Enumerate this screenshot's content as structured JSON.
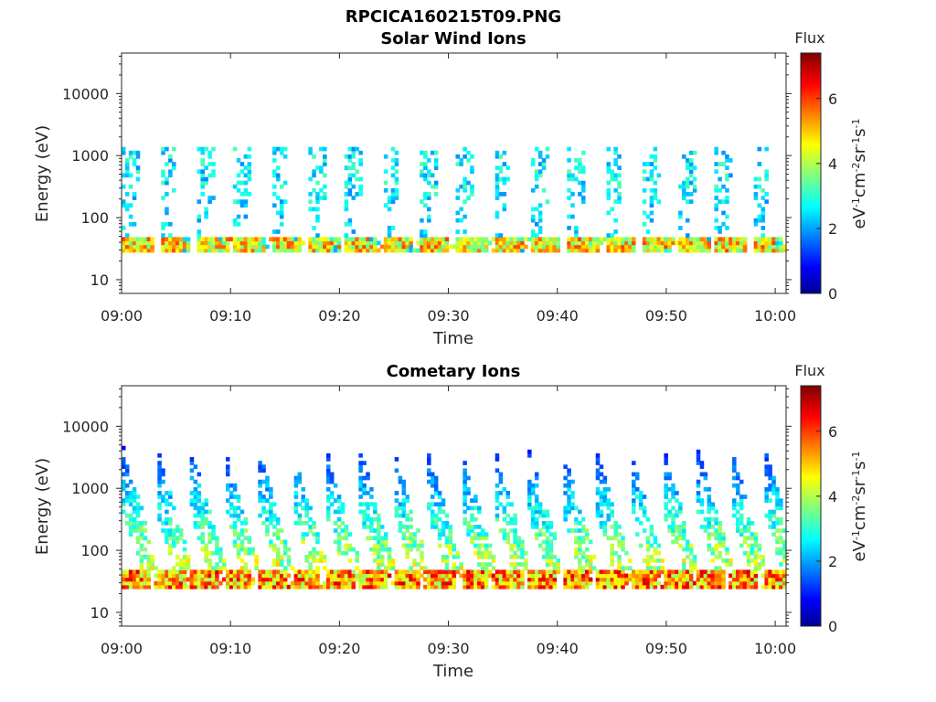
{
  "figure": {
    "title": "RPCICA160215T09.PNG"
  },
  "chart_data": [
    {
      "type": "heatmap",
      "title": "Solar Wind Ions",
      "xlabel": "Time",
      "ylabel": "Energy (eV)",
      "y_scale": "log",
      "ylim": [
        6,
        45000
      ],
      "xlim": [
        "09:00",
        "10:01"
      ],
      "x_ticks": [
        "09:00",
        "09:10",
        "09:20",
        "09:30",
        "09:40",
        "09:50",
        "10:00"
      ],
      "y_ticks": [
        "10",
        "100",
        "1000",
        "10000"
      ],
      "colorbar": {
        "title": "Flux",
        "label": "eV-1cm-2sr-1s-1",
        "range": [
          0,
          7.4
        ],
        "ticks": [
          "0",
          "2",
          "4",
          "6"
        ],
        "colormap": "jet"
      },
      "grid": false,
      "pattern": {
        "band_energy_range_eV": [
          25,
          45
        ],
        "band_peak_flux": 6.0,
        "bursts_every_min": 3.4,
        "upper_population_energy_range_eV": [
          150,
          1200
        ],
        "upper_population_flux": 3.0
      }
    },
    {
      "type": "heatmap",
      "title": "Cometary Ions",
      "xlabel": "Time",
      "ylabel": "Energy (eV)",
      "y_scale": "log",
      "ylim": [
        6,
        45000
      ],
      "xlim": [
        "09:00",
        "10:01"
      ],
      "x_ticks": [
        "09:00",
        "09:10",
        "09:20",
        "09:30",
        "09:40",
        "09:50",
        "10:00"
      ],
      "y_ticks": [
        "10",
        "100",
        "1000",
        "10000"
      ],
      "colorbar": {
        "title": "Flux",
        "label": "eV-1cm-2sr-1s-1",
        "range": [
          0,
          7.4
        ],
        "ticks": [
          "0",
          "2",
          "4",
          "6"
        ],
        "colormap": "jet"
      },
      "grid": false,
      "pattern": {
        "band_energy_range_eV": [
          22,
          45
        ],
        "band_peak_flux": 6.8,
        "bursts_every_min": 3.1,
        "dispersion_max_energy_eV": 3000
      }
    }
  ]
}
